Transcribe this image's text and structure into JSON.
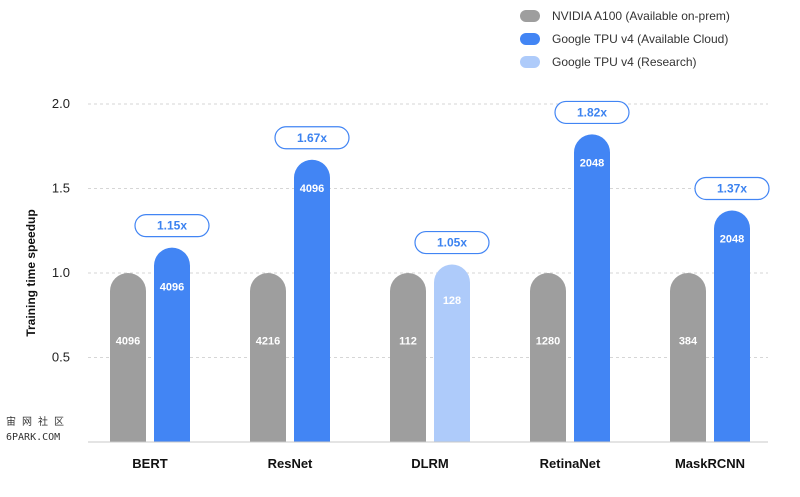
{
  "chart_data": {
    "type": "bar",
    "ylabel": "Training time speedup",
    "ylim": [
      0,
      2.0
    ],
    "yticks": [
      "0.5",
      "1.0",
      "1.5",
      "2.0"
    ],
    "yticks_values": [
      0.5,
      1.0,
      1.5,
      2.0
    ],
    "grid": true,
    "legend_position": "top-right",
    "series_meta": [
      {
        "name": "NVIDIA A100 (Available on-prem)",
        "color": "#9e9e9e"
      },
      {
        "name": "Google TPU v4 (Available Cloud)",
        "color": "#4285f4"
      },
      {
        "name": "Google TPU v4 (Research)",
        "color": "#aecbfa"
      }
    ],
    "groups": [
      {
        "category": "BERT",
        "speedup": "1.15x",
        "bars": [
          {
            "series": 0,
            "value": 1.0,
            "label": "4096"
          },
          {
            "series": 1,
            "value": 1.15,
            "label": "4096"
          }
        ]
      },
      {
        "category": "ResNet",
        "speedup": "1.67x",
        "bars": [
          {
            "series": 0,
            "value": 1.0,
            "label": "4216"
          },
          {
            "series": 1,
            "value": 1.67,
            "label": "4096"
          }
        ]
      },
      {
        "category": "DLRM",
        "speedup": "1.05x",
        "bars": [
          {
            "series": 0,
            "value": 1.0,
            "label": "112"
          },
          {
            "series": 2,
            "value": 1.05,
            "label": "128"
          }
        ]
      },
      {
        "category": "RetinaNet",
        "speedup": "1.82x",
        "bars": [
          {
            "series": 0,
            "value": 1.0,
            "label": "1280"
          },
          {
            "series": 1,
            "value": 1.82,
            "label": "2048"
          }
        ]
      },
      {
        "category": "MaskRCNN",
        "speedup": "1.37x",
        "bars": [
          {
            "series": 0,
            "value": 1.0,
            "label": "384"
          },
          {
            "series": 1,
            "value": 1.37,
            "label": "2048"
          }
        ]
      }
    ]
  },
  "watermark": {
    "line1": "宙 网 社 区",
    "line2": "6PARK.COM"
  }
}
